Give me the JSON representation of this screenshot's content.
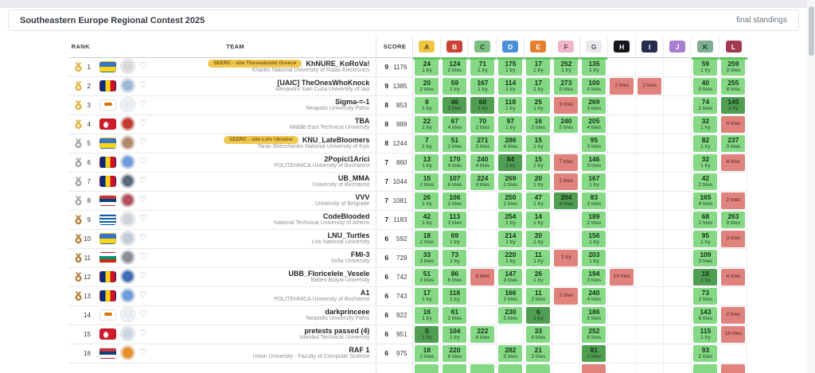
{
  "header": {
    "title": "Southeastern Europe Regional Contest 2025",
    "status": "final standings"
  },
  "columns": {
    "rank": "RANK",
    "team": "TEAM",
    "score": "SCORE"
  },
  "colors": {
    "accepted": "#85d985",
    "first_solve": "#4f9e52",
    "rejected": "#df837c",
    "solved_underline": "#61c462",
    "badge_bg": "#f0c84f",
    "medal_gold": "#e2b13c",
    "medal_silver": "#a3a8ad",
    "medal_bronze": "#b5823d"
  },
  "problems": [
    {
      "letter": "A",
      "bg": "#eec643",
      "fg": "#4a3c10",
      "solved": true
    },
    {
      "letter": "B",
      "bg": "#cb4335",
      "fg": "#ffffff",
      "solved": true
    },
    {
      "letter": "C",
      "bg": "#7fbf7f",
      "fg": "#23442a",
      "solved": true
    },
    {
      "letter": "D",
      "bg": "#4a90d9",
      "fg": "#ffffff",
      "solved": true
    },
    {
      "letter": "E",
      "bg": "#e67e30",
      "fg": "#ffffff",
      "solved": true
    },
    {
      "letter": "F",
      "bg": "#f0b6c8",
      "fg": "#6d4756",
      "solved": true
    },
    {
      "letter": "G",
      "bg": "#e9eaec",
      "fg": "#555a60",
      "solved": true
    },
    {
      "letter": "H",
      "bg": "#17151a",
      "fg": "#ffffff",
      "solved": false
    },
    {
      "letter": "I",
      "bg": "#252e4d",
      "fg": "#ffffff",
      "solved": false
    },
    {
      "letter": "J",
      "bg": "#a87fd0",
      "fg": "#ffffff",
      "solved": false
    },
    {
      "letter": "K",
      "bg": "#7fae94",
      "fg": "#1f3b2d",
      "solved": true
    },
    {
      "letter": "L",
      "bg": "#a13a52",
      "fg": "#ffffff",
      "solved": true
    }
  ],
  "rows": [
    {
      "rank": 1,
      "medal": "gold",
      "flag": "ua",
      "logo": "#d8d8d8",
      "badge": "SEERC - site Thessaloniki Greece",
      "team": "KhNURE_KoRoVa!",
      "univ": "Kharkiv National University of Radio Electronics",
      "solved": 9,
      "pen": 1176,
      "cells": [
        {
          "s": "ok",
          "v": "24",
          "t": "1 try"
        },
        {
          "s": "ok",
          "v": "124",
          "t": "2 tries"
        },
        {
          "s": "ok",
          "v": "71",
          "t": "1 try"
        },
        {
          "s": "ok",
          "v": "175",
          "t": "1 try"
        },
        {
          "s": "ok",
          "v": "17",
          "t": "1 try"
        },
        {
          "s": "ok",
          "v": "252",
          "t": "1 try"
        },
        {
          "s": "ok",
          "v": "135",
          "t": "1 try"
        },
        null,
        null,
        null,
        {
          "s": "ok",
          "v": "59",
          "t": "1 try"
        },
        {
          "s": "ok",
          "v": "259",
          "t": "3 tries"
        }
      ]
    },
    {
      "rank": 2,
      "medal": "gold",
      "flag": "ro",
      "logo": "#9db9d6",
      "badge": null,
      "team": "[UAIC] TheOnesWhoKnock",
      "univ": "Alexandru Ioan Cuza University of Iași",
      "solved": 9,
      "pen": 1385,
      "cells": [
        {
          "s": "ok",
          "v": "20",
          "t": "2 tries"
        },
        {
          "s": "ok",
          "v": "59",
          "t": "1 try"
        },
        {
          "s": "ok",
          "v": "167",
          "t": "1 try"
        },
        {
          "s": "ok",
          "v": "114",
          "t": "1 try"
        },
        {
          "s": "ok",
          "v": "17",
          "t": "1 try"
        },
        {
          "s": "ok",
          "v": "273",
          "t": "5 tries"
        },
        {
          "s": "ok",
          "v": "100",
          "t": "4 tries"
        },
        {
          "s": "fail",
          "v": null,
          "t": "2 tries"
        },
        {
          "s": "fail",
          "v": null,
          "t": "2 tries"
        },
        null,
        {
          "s": "ok",
          "v": "40",
          "t": "3 tries"
        },
        {
          "s": "ok",
          "v": "255",
          "t": "8 tries"
        }
      ]
    },
    {
      "rank": 3,
      "medal": "gold",
      "flag": "cy",
      "logo": "#e8edf2",
      "badge": null,
      "team": "Sigma-=-1",
      "univ": "Neapolis University Pafos",
      "solved": 8,
      "pen": 853,
      "cells": [
        {
          "s": "ok",
          "v": "8",
          "t": "1 try"
        },
        {
          "s": "first",
          "v": "46",
          "t": "3 tries"
        },
        {
          "s": "first",
          "v": "68",
          "t": "1 try"
        },
        {
          "s": "ok",
          "v": "118",
          "t": "1 try"
        },
        {
          "s": "ok",
          "v": "25",
          "t": "1 try"
        },
        {
          "s": "fail",
          "v": null,
          "t": "3 tries"
        },
        {
          "s": "ok",
          "v": "269",
          "t": "3 tries"
        },
        null,
        null,
        null,
        {
          "s": "ok",
          "v": "74",
          "t": "2 tries"
        },
        {
          "s": "first",
          "v": "145",
          "t": "1 try"
        }
      ]
    },
    {
      "rank": 4,
      "medal": "gold",
      "flag": "tr",
      "logo": "#c23b33",
      "badge": null,
      "team": "TBA",
      "univ": "Middle East Technical University",
      "solved": 8,
      "pen": 989,
      "cells": [
        {
          "s": "ok",
          "v": "22",
          "t": "1 try"
        },
        {
          "s": "ok",
          "v": "67",
          "t": "4 tries"
        },
        {
          "s": "ok",
          "v": "70",
          "t": "2 tries"
        },
        {
          "s": "ok",
          "v": "97",
          "t": "1 try"
        },
        {
          "s": "ok",
          "v": "16",
          "t": "2 tries"
        },
        {
          "s": "ok",
          "v": "240",
          "t": "5 tries"
        },
        {
          "s": "ok",
          "v": "205",
          "t": "4 tries"
        },
        null,
        null,
        null,
        {
          "s": "ok",
          "v": "32",
          "t": "1 try"
        },
        {
          "s": "fail",
          "v": null,
          "t": "4 tries"
        }
      ]
    },
    {
      "rank": 5,
      "medal": "silver",
      "flag": "ua",
      "logo": "#b08a6a",
      "badge": "SEERC - site Lviv Ukraine",
      "team": "KNU_LateBloomers",
      "univ": "Taras Shevchenko National University of Kyiv",
      "solved": 8,
      "pen": 1244,
      "cells": [
        {
          "s": "ok",
          "v": "7",
          "t": "1 try"
        },
        {
          "s": "ok",
          "v": "51",
          "t": "2 tries"
        },
        {
          "s": "ok",
          "v": "271",
          "t": "3 tries"
        },
        {
          "s": "ok",
          "v": "286",
          "t": "4 tries"
        },
        {
          "s": "ok",
          "v": "15",
          "t": "1 try"
        },
        null,
        {
          "s": "ok",
          "v": "95",
          "t": "3 tries"
        },
        null,
        null,
        null,
        {
          "s": "ok",
          "v": "82",
          "t": "1 try"
        },
        {
          "s": "ok",
          "v": "237",
          "t": "3 tries"
        }
      ]
    },
    {
      "rank": 6,
      "medal": "silver",
      "flag": "ro",
      "logo": "#6f9ddb",
      "badge": null,
      "team": "2Popici1Arici",
      "univ": "POLITEHNICA University of Bucharest",
      "solved": 7,
      "pen": 860,
      "cells": [
        {
          "s": "ok",
          "v": "13",
          "t": "1 try"
        },
        {
          "s": "ok",
          "v": "170",
          "t": "4 tries"
        },
        {
          "s": "ok",
          "v": "240",
          "t": "4 tries"
        },
        {
          "s": "first",
          "v": "84",
          "t": "1 try"
        },
        {
          "s": "ok",
          "v": "15",
          "t": "1 try"
        },
        {
          "s": "fail",
          "v": null,
          "t": "7 tries"
        },
        {
          "s": "ok",
          "v": "146",
          "t": "3 tries"
        },
        null,
        null,
        null,
        {
          "s": "ok",
          "v": "32",
          "t": "1 try"
        },
        {
          "s": "fail",
          "v": null,
          "t": "4 tries"
        }
      ]
    },
    {
      "rank": 7,
      "medal": "silver",
      "flag": "ro",
      "logo": "#5a6b7a",
      "badge": null,
      "team": "UB_MMA",
      "univ": "University of Bucharest",
      "solved": 7,
      "pen": 1044,
      "cells": [
        {
          "s": "ok",
          "v": "15",
          "t": "2 tries"
        },
        {
          "s": "ok",
          "v": "107",
          "t": "6 tries"
        },
        {
          "s": "ok",
          "v": "224",
          "t": "3 tries"
        },
        {
          "s": "ok",
          "v": "269",
          "t": "2 tries"
        },
        {
          "s": "ok",
          "v": "20",
          "t": "1 try"
        },
        {
          "s": "fail",
          "v": null,
          "t": "2 tries"
        },
        {
          "s": "ok",
          "v": "167",
          "t": "1 try"
        },
        null,
        null,
        null,
        {
          "s": "ok",
          "v": "42",
          "t": "2 tries"
        },
        null
      ]
    },
    {
      "rank": 8,
      "medal": "silver",
      "flag": "rs",
      "logo": "#b55158",
      "badge": null,
      "team": "VVV",
      "univ": "University of Belgrade",
      "solved": 7,
      "pen": 1081,
      "cells": [
        {
          "s": "ok",
          "v": "26",
          "t": "1 try"
        },
        {
          "s": "ok",
          "v": "106",
          "t": "2 tries"
        },
        null,
        {
          "s": "ok",
          "v": "250",
          "t": "2 tries"
        },
        {
          "s": "ok",
          "v": "47",
          "t": "1 try"
        },
        {
          "s": "first",
          "v": "204",
          "t": "4 tries"
        },
        {
          "s": "ok",
          "v": "83",
          "t": "3 tries"
        },
        null,
        null,
        null,
        {
          "s": "ok",
          "v": "165",
          "t": "4 tries"
        },
        {
          "s": "fail",
          "v": null,
          "t": "2 tries"
        }
      ]
    },
    {
      "rank": 9,
      "medal": "bronze",
      "flag": "gr",
      "logo": "#cfd4d9",
      "badge": null,
      "team": "CodeBlooded",
      "univ": "National Technical University of Athens",
      "solved": 7,
      "pen": 1183,
      "cells": [
        {
          "s": "ok",
          "v": "42",
          "t": "1 try"
        },
        {
          "s": "ok",
          "v": "113",
          "t": "3 tries"
        },
        null,
        {
          "s": "ok",
          "v": "254",
          "t": "1 try"
        },
        {
          "s": "ok",
          "v": "14",
          "t": "1 try"
        },
        null,
        {
          "s": "ok",
          "v": "189",
          "t": "2 tries"
        },
        null,
        null,
        null,
        {
          "s": "ok",
          "v": "68",
          "t": "2 tries"
        },
        {
          "s": "ok",
          "v": "263",
          "t": "9 tries"
        }
      ]
    },
    {
      "rank": 10,
      "medal": "bronze",
      "flag": "ua",
      "logo": "#c3ccd6",
      "badge": null,
      "team": "LNU_Turtles",
      "univ": "Lviv National University",
      "solved": 6,
      "pen": 592,
      "cells": [
        {
          "s": "ok",
          "v": "18",
          "t": "2 tries"
        },
        {
          "s": "ok",
          "v": "69",
          "t": "1 try"
        },
        null,
        {
          "s": "ok",
          "v": "214",
          "t": "1 try"
        },
        {
          "s": "ok",
          "v": "20",
          "t": "1 try"
        },
        null,
        {
          "s": "ok",
          "v": "156",
          "t": "1 try"
        },
        null,
        null,
        null,
        {
          "s": "ok",
          "v": "95",
          "t": "1 try"
        },
        {
          "s": "fail",
          "v": null,
          "t": "3 tries"
        }
      ]
    },
    {
      "rank": 11,
      "medal": "bronze",
      "flag": "bg",
      "logo": "#8b8f94",
      "badge": null,
      "team": "FMI-3",
      "univ": "Sofia University",
      "solved": 6,
      "pen": 729,
      "cells": [
        {
          "s": "ok",
          "v": "33",
          "t": "3 tries"
        },
        {
          "s": "ok",
          "v": "73",
          "t": "1 try"
        },
        null,
        {
          "s": "ok",
          "v": "220",
          "t": "1 try"
        },
        {
          "s": "ok",
          "v": "11",
          "t": "1 try"
        },
        {
          "s": "fail",
          "v": null,
          "t": "1 try"
        },
        {
          "s": "ok",
          "v": "203",
          "t": "1 try"
        },
        null,
        null,
        null,
        {
          "s": "ok",
          "v": "109",
          "t": "3 tries"
        },
        null
      ]
    },
    {
      "rank": 12,
      "medal": "bronze",
      "flag": "ro",
      "logo": "#3f6db5",
      "badge": null,
      "team": "UBB_Floricelele_Vesele",
      "univ": "Babes-Bolyai University",
      "solved": 6,
      "pen": 742,
      "cells": [
        {
          "s": "ok",
          "v": "51",
          "t": "3 tries"
        },
        {
          "s": "ok",
          "v": "86",
          "t": "6 tries"
        },
        {
          "s": "fail",
          "v": null,
          "t": "8 tries"
        },
        {
          "s": "ok",
          "v": "147",
          "t": "3 tries"
        },
        {
          "s": "ok",
          "v": "26",
          "t": "1 try"
        },
        null,
        {
          "s": "ok",
          "v": "194",
          "t": "3 tries"
        },
        {
          "s": "fail",
          "v": null,
          "t": "10 tries"
        },
        null,
        null,
        {
          "s": "first",
          "v": "18",
          "t": "1 try"
        },
        {
          "s": "fail",
          "v": null,
          "t": "4 tries"
        }
      ]
    },
    {
      "rank": 13,
      "medal": "bronze",
      "flag": "ro",
      "logo": "#6f9ddb",
      "badge": null,
      "team": "A1",
      "univ": "POLITEHNICA University of Bucharest",
      "solved": 6,
      "pen": 743,
      "cells": [
        {
          "s": "ok",
          "v": "17",
          "t": "1 try"
        },
        {
          "s": "ok",
          "v": "116",
          "t": "1 try"
        },
        null,
        {
          "s": "ok",
          "v": "166",
          "t": "2 tries"
        },
        {
          "s": "ok",
          "v": "11",
          "t": "2 tries"
        },
        {
          "s": "fail",
          "v": null,
          "t": "2 tries"
        },
        {
          "s": "ok",
          "v": "240",
          "t": "4 tries"
        },
        null,
        null,
        null,
        {
          "s": "ok",
          "v": "73",
          "t": "2 tries"
        },
        null
      ]
    },
    {
      "rank": 14,
      "medal": null,
      "flag": "cy",
      "logo": "#e8edf2",
      "badge": null,
      "team": "darkprinceee",
      "univ": "Neapolis University Pafos",
      "solved": 6,
      "pen": 922,
      "cells": [
        {
          "s": "ok",
          "v": "16",
          "t": "1 try"
        },
        {
          "s": "ok",
          "v": "61",
          "t": "2 tries"
        },
        null,
        {
          "s": "ok",
          "v": "230",
          "t": "5 tries"
        },
        {
          "s": "first",
          "v": "6",
          "t": "1 try"
        },
        null,
        {
          "s": "ok",
          "v": "186",
          "t": "5 tries"
        },
        null,
        null,
        null,
        {
          "s": "ok",
          "v": "143",
          "t": "6 tries"
        },
        {
          "s": "fail",
          "v": null,
          "t": "2 tries"
        }
      ]
    },
    {
      "rank": 15,
      "medal": null,
      "flag": "tr",
      "logo": "#ccd6e0",
      "badge": null,
      "team": "pretests passed (4)",
      "univ": "Istanbul Technical University",
      "solved": 6,
      "pen": 951,
      "cells": [
        {
          "s": "first",
          "v": "5",
          "t": "1 try"
        },
        {
          "s": "ok",
          "v": "104",
          "t": "1 try"
        },
        {
          "s": "ok",
          "v": "222",
          "t": "4 tries"
        },
        null,
        {
          "s": "ok",
          "v": "33",
          "t": "4 tries"
        },
        null,
        {
          "s": "ok",
          "v": "252",
          "t": "6 tries"
        },
        null,
        null,
        null,
        {
          "s": "ok",
          "v": "115",
          "t": "1 try"
        },
        {
          "s": "fail",
          "v": null,
          "t": "16 tries"
        }
      ]
    },
    {
      "rank": 16,
      "medal": null,
      "flag": "rs",
      "logo": "#e8902e",
      "badge": null,
      "team": "RAF 1",
      "univ": "Union University - Faculty of Computer Science",
      "solved": 6,
      "pen": 975,
      "cells": [
        {
          "s": "ok",
          "v": "18",
          "t": "2 tries"
        },
        {
          "s": "ok",
          "v": "220",
          "t": "6 tries"
        },
        null,
        {
          "s": "ok",
          "v": "282",
          "t": "5 tries"
        },
        {
          "s": "ok",
          "v": "21",
          "t": "2 tries"
        },
        null,
        {
          "s": "first",
          "v": "81",
          "t": "2 tries"
        },
        null,
        null,
        null,
        {
          "s": "ok",
          "v": "93",
          "t": "2 tries"
        },
        null
      ]
    }
  ],
  "partial_row": {
    "cells": [
      "ok",
      "ok",
      "ok",
      "ok",
      "ok",
      null,
      "fail",
      null,
      null,
      null,
      "ok",
      "fail"
    ]
  }
}
